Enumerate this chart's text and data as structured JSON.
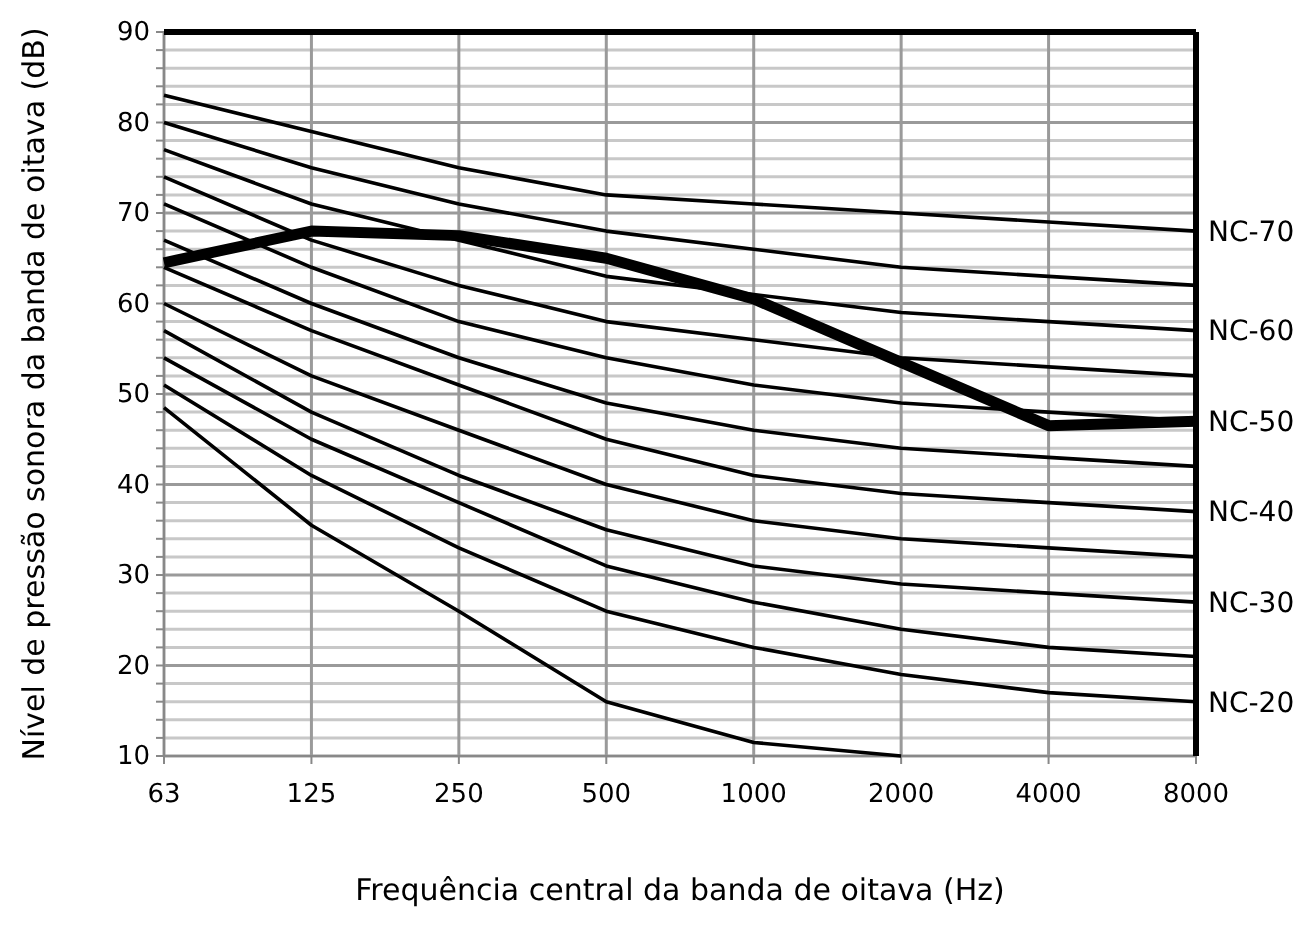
{
  "chart_data": {
    "type": "line",
    "xlabel": "Frequência central da banda de oitava (Hz)",
    "ylabel": "Nível de pressão sonora da banda de oitava (dB)",
    "categories": [
      "63",
      "125",
      "250",
      "500",
      "1000",
      "2000",
      "4000",
      "8000"
    ],
    "ylim": [
      10,
      90
    ],
    "yticks": [
      10,
      {
        "value": 12,
        "label": null
      },
      {
        "value": 14,
        "label": null
      },
      {
        "value": 16,
        "label": null
      },
      {
        "value": 18,
        "label": null
      },
      20,
      {
        "value": 22,
        "label": null
      },
      {
        "value": 24,
        "label": null
      },
      {
        "value": 26,
        "label": null
      },
      {
        "value": 28,
        "label": null
      },
      30,
      {
        "value": 32,
        "label": null
      },
      {
        "value": 34,
        "label": null
      },
      {
        "value": 36,
        "label": null
      },
      {
        "value": 38,
        "label": null
      },
      40,
      {
        "value": 42,
        "label": null
      },
      {
        "value": 44,
        "label": null
      },
      {
        "value": 46,
        "label": null
      },
      {
        "value": 48,
        "label": null
      },
      50,
      {
        "value": 52,
        "label": null
      },
      {
        "value": 54,
        "label": null
      },
      {
        "value": 56,
        "label": null
      },
      {
        "value": 58,
        "label": null
      },
      60,
      {
        "value": 62,
        "label": null
      },
      {
        "value": 64,
        "label": null
      },
      {
        "value": 66,
        "label": null
      },
      {
        "value": 68,
        "label": null
      },
      70,
      {
        "value": 72,
        "label": null
      },
      {
        "value": 74,
        "label": null
      },
      {
        "value": 76,
        "label": null
      },
      {
        "value": 78,
        "label": null
      },
      80,
      {
        "value": 82,
        "label": null
      },
      {
        "value": 84,
        "label": null
      },
      {
        "value": 86,
        "label": null
      },
      {
        "value": 88,
        "label": null
      },
      90
    ],
    "grid": true,
    "marker": "none",
    "line_style": "solid",
    "series": [
      {
        "name": "NC-70",
        "color": "#000000",
        "values": [
          83,
          79,
          75,
          72,
          71,
          70,
          69,
          68
        ]
      },
      {
        "color": "#000000",
        "values": [
          80,
          75,
          71,
          68,
          66,
          64,
          63,
          62
        ]
      },
      {
        "name": "NC-60",
        "color": "#000000",
        "values": [
          77,
          71,
          67,
          63,
          61,
          59,
          58,
          57
        ]
      },
      {
        "color": "#000000",
        "values": [
          74,
          67,
          62,
          58,
          56,
          54,
          53,
          52
        ]
      },
      {
        "name": "NC-50",
        "color": "#000000",
        "values": [
          71,
          64,
          58,
          54,
          51,
          49,
          48,
          47
        ]
      },
      {
        "color": "#000000",
        "values": [
          67,
          60,
          54,
          49,
          46,
          44,
          43,
          42
        ]
      },
      {
        "name": "NC-40",
        "color": "#000000",
        "values": [
          64,
          57,
          51,
          45,
          41,
          39,
          38,
          37
        ]
      },
      {
        "color": "#000000",
        "values": [
          60,
          52,
          46,
          40,
          36,
          34,
          33,
          32
        ]
      },
      {
        "name": "NC-30",
        "color": "#000000",
        "values": [
          57,
          48,
          41,
          35,
          31,
          29,
          28,
          27
        ]
      },
      {
        "color": "#000000",
        "values": [
          54,
          45,
          38,
          31,
          27,
          24,
          22,
          21
        ]
      },
      {
        "name": "NC-20",
        "color": "#000000",
        "values": [
          51,
          41,
          33,
          26,
          22,
          19,
          17,
          16
        ]
      },
      {
        "color": "#000000",
        "values": [
          48.5,
          35.5,
          26,
          16,
          11.5,
          10,
          null,
          null
        ]
      },
      {
        "color": "#000000",
        "values": [
          64.5,
          68,
          67.5,
          65,
          60.5,
          53.5,
          46.5,
          47
        ]
      }
    ]
  }
}
